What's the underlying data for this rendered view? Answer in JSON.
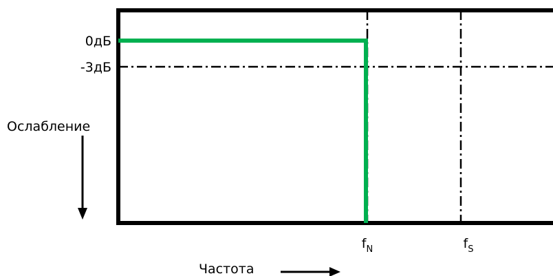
{
  "axis_labels": {
    "y_title": "Ослабление",
    "x_title": "Частота"
  },
  "level_labels": {
    "zero_db": "0дБ",
    "minus3_db": "-3дБ"
  },
  "frequency_markers": {
    "nyquist": {
      "base": "f",
      "subscript": "N"
    },
    "sampling": {
      "base": "f",
      "subscript": "S"
    }
  },
  "colors": {
    "response_curve": "#00b050",
    "frame": "#000000",
    "text": "#000000"
  }
}
